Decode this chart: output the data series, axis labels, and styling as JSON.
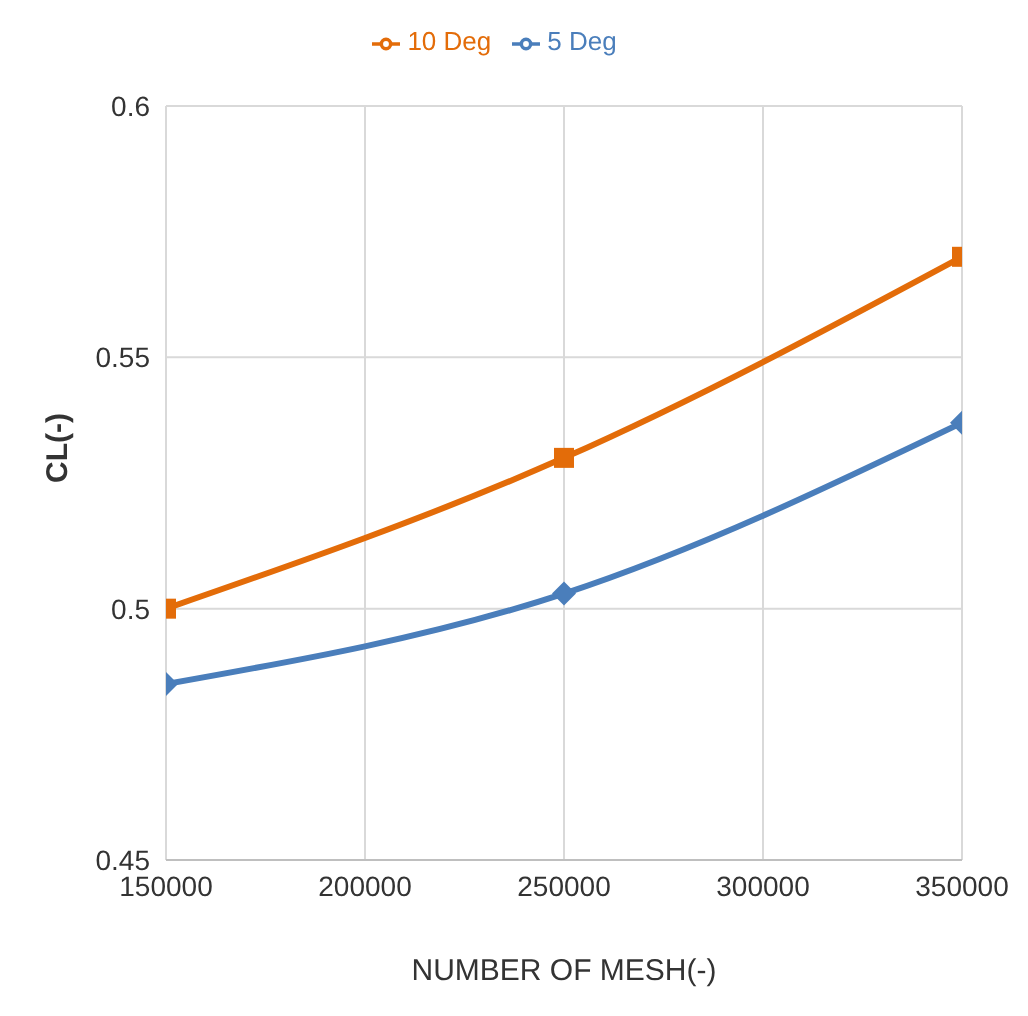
{
  "chart_data": {
    "type": "line",
    "xlabel": "NUMBER OF MESH(-)",
    "ylabel": "CL(-)",
    "x": [
      150000,
      250000,
      350000
    ],
    "series": [
      {
        "name": "5 Deg",
        "color": "#4a7ebb",
        "marker": "diamond",
        "values": [
          0.485,
          0.503,
          0.537
        ]
      },
      {
        "name": "10 Deg",
        "color": "#e36c09",
        "marker": "square",
        "values": [
          0.5,
          0.53,
          0.57
        ]
      }
    ],
    "xlim": [
      150000,
      350000
    ],
    "xticks": [
      150000,
      200000,
      250000,
      300000,
      350000
    ],
    "ylim": [
      0.45,
      0.6
    ],
    "yticks": [
      0.45,
      0.5,
      0.55,
      0.6
    ],
    "grid": true,
    "legend": "top"
  }
}
